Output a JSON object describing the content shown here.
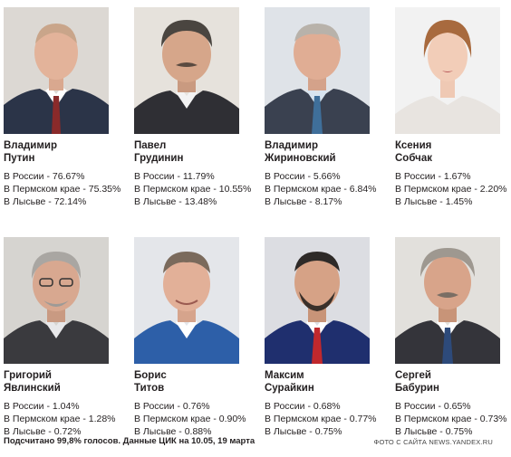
{
  "candidates": [
    {
      "first": "Владимир",
      "last": "Путин",
      "russia": "В России - 76.67%",
      "perm": "В Пермском крае - 75.35%",
      "lysva": "В Лысьве - 72.14%"
    },
    {
      "first": "Павел",
      "last": "Грудинин",
      "russia": "В России - 11.79%",
      "perm": "В Пермском крае - 10.55%",
      "lysva": "В Лысьве - 13.48%"
    },
    {
      "first": "Владимир",
      "last": "Жириновский",
      "russia": "В России - 5.66%",
      "perm": "В Пермском крае - 6.84%",
      "lysva": "В Лысьве - 8.17%"
    },
    {
      "first": "Ксения",
      "last": "Собчак",
      "russia": "В России - 1.67%",
      "perm": "В Пермском крае - 2.20%",
      "lysva": "В Лысьве - 1.45%"
    },
    {
      "first": "Григорий",
      "last": "Явлинский",
      "russia": "В России - 1.04%",
      "perm": "В Пермском крае - 1.28%",
      "lysva": "В Лысьве - 0.72%"
    },
    {
      "first": "Борис",
      "last": "Титов",
      "russia": "В России - 0.76%",
      "perm": "В Пермском крае - 0.90%",
      "lysva": "В Лысьве - 0.88%"
    },
    {
      "first": "Максим",
      "last": "Сурайкин",
      "russia": "В России - 0.68%",
      "perm": "В Пермском крае - 0.77%",
      "lysva": "В Лысьве - 0.75%"
    },
    {
      "first": "Сергей",
      "last": "Бабурин",
      "russia": "В России - 0.65%",
      "perm": "В Пермском крае - 0.73%",
      "lysva": "В Лысьве - 0.75%"
    }
  ],
  "footer": {
    "note": "Подсчитано 99,8% голосов. Данные ЦИК на 10.05, 19 марта",
    "credit": "ФОТО С САЙТА NEWS.YANDEX.RU"
  },
  "colors": {
    "text": "#231f20",
    "background": "#ffffff"
  }
}
